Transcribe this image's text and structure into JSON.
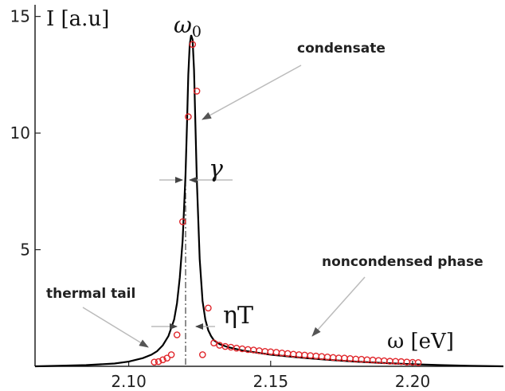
{
  "chart_data": {
    "type": "line",
    "xlabel": "ω [eV]",
    "ylabel": "I [a.u]",
    "xlim": [
      2.067,
      2.232
    ],
    "ylim": [
      0,
      15.5
    ],
    "x_ticks": [
      2.1,
      2.15,
      2.2
    ],
    "x_tick_labels": [
      "2.10",
      "2.15",
      "2.20"
    ],
    "y_ticks": [
      5,
      10,
      15
    ],
    "y_tick_labels": [
      "5",
      "10",
      "15"
    ],
    "grid": false,
    "series": [
      {
        "kind": "line",
        "color": "#000000",
        "x": [
          2.067,
          2.075,
          2.085,
          2.095,
          2.1,
          2.105,
          2.108,
          2.11,
          2.112,
          2.114,
          2.116,
          2.117,
          2.118,
          2.119,
          2.12,
          2.1205,
          2.121,
          2.1215,
          2.122,
          2.1225,
          2.123,
          2.1235,
          2.124,
          2.125,
          2.126,
          2.127,
          2.128,
          2.129,
          2.13,
          2.132,
          2.135,
          2.14,
          2.15,
          2.16,
          2.17,
          2.18,
          2.19,
          2.2,
          2.21,
          2.22,
          2.232
        ],
        "y": [
          0.0,
          0.02,
          0.05,
          0.12,
          0.2,
          0.35,
          0.5,
          0.65,
          0.9,
          1.3,
          2.0,
          2.7,
          3.8,
          5.4,
          8.2,
          10.3,
          12.5,
          13.8,
          14.2,
          14.0,
          12.7,
          10.4,
          8.0,
          4.6,
          2.8,
          2.0,
          1.55,
          1.3,
          1.12,
          0.95,
          0.82,
          0.68,
          0.5,
          0.38,
          0.28,
          0.2,
          0.14,
          0.09,
          0.05,
          0.02,
          0.0
        ]
      },
      {
        "kind": "scatter",
        "color": "#e0262b",
        "x": [
          2.109,
          2.1105,
          2.112,
          2.1135,
          2.115,
          2.117,
          2.119,
          2.121,
          2.1225,
          2.124,
          2.126,
          2.128,
          2.13,
          2.132,
          2.134,
          2.136,
          2.138,
          2.14,
          2.142,
          2.144,
          2.146,
          2.148,
          2.15,
          2.152,
          2.154,
          2.156,
          2.158,
          2.16,
          2.162,
          2.164,
          2.166,
          2.168,
          2.17,
          2.172,
          2.174,
          2.176,
          2.178,
          2.18,
          2.182,
          2.184,
          2.186,
          2.188,
          2.19,
          2.192,
          2.194,
          2.196,
          2.198,
          2.2,
          2.202
        ],
        "y": [
          0.18,
          0.2,
          0.28,
          0.35,
          0.5,
          1.35,
          6.2,
          10.7,
          13.8,
          11.8,
          0.5,
          2.5,
          1.0,
          0.9,
          0.85,
          0.82,
          0.78,
          0.75,
          0.72,
          0.7,
          0.67,
          0.64,
          0.62,
          0.6,
          0.57,
          0.55,
          0.52,
          0.5,
          0.48,
          0.46,
          0.44,
          0.42,
          0.4,
          0.38,
          0.36,
          0.35,
          0.33,
          0.31,
          0.3,
          0.28,
          0.27,
          0.25,
          0.24,
          0.22,
          0.21,
          0.2,
          0.18,
          0.17,
          0.16
        ]
      }
    ],
    "annotations": {
      "omega0": "ω",
      "omega0_sub": "0",
      "gamma": "γ",
      "eta_t": "ηT",
      "condensate": "condensate",
      "noncondensed": "noncondensed phase",
      "thermal": "thermal tail"
    }
  }
}
